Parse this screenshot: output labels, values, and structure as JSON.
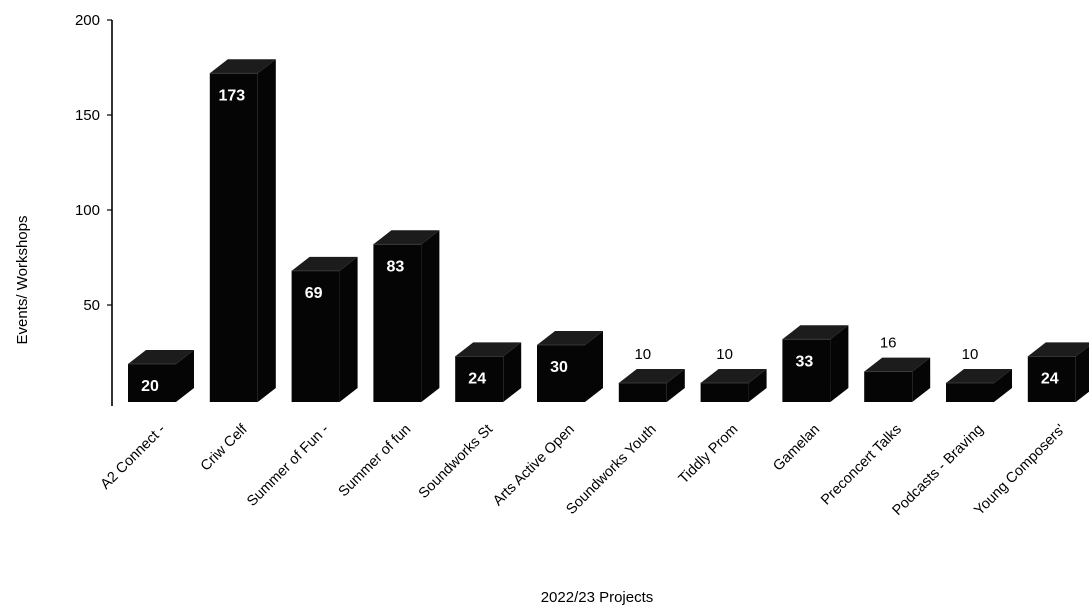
{
  "chart_data": {
    "type": "bar",
    "style": "3d",
    "categories": [
      "A2 Connect -",
      "Criw Celf",
      "Summer of Fun -",
      "Summer of fun",
      "Soundworks St",
      "Arts Active Open",
      "Soundworks Youth",
      "Tiddly Prom",
      "Gamelan",
      "Preconcert Talks",
      "Podcasts - Braving",
      "Young Composers'"
    ],
    "values": [
      20,
      173,
      69,
      83,
      24,
      30,
      10,
      10,
      33,
      16,
      10,
      24
    ],
    "value_labels": [
      "20",
      "173",
      "69",
      "83",
      "24",
      "30",
      "10",
      "10",
      "33",
      "16",
      "10",
      "24"
    ],
    "xlabel": "2022/23 Projects",
    "ylabel": "Events/ Workshops",
    "ylim": [
      0,
      200
    ],
    "yticks": [
      "50",
      "100",
      "150",
      "200"
    ],
    "grid": false,
    "legend": "none",
    "bar_color": "#050505"
  }
}
